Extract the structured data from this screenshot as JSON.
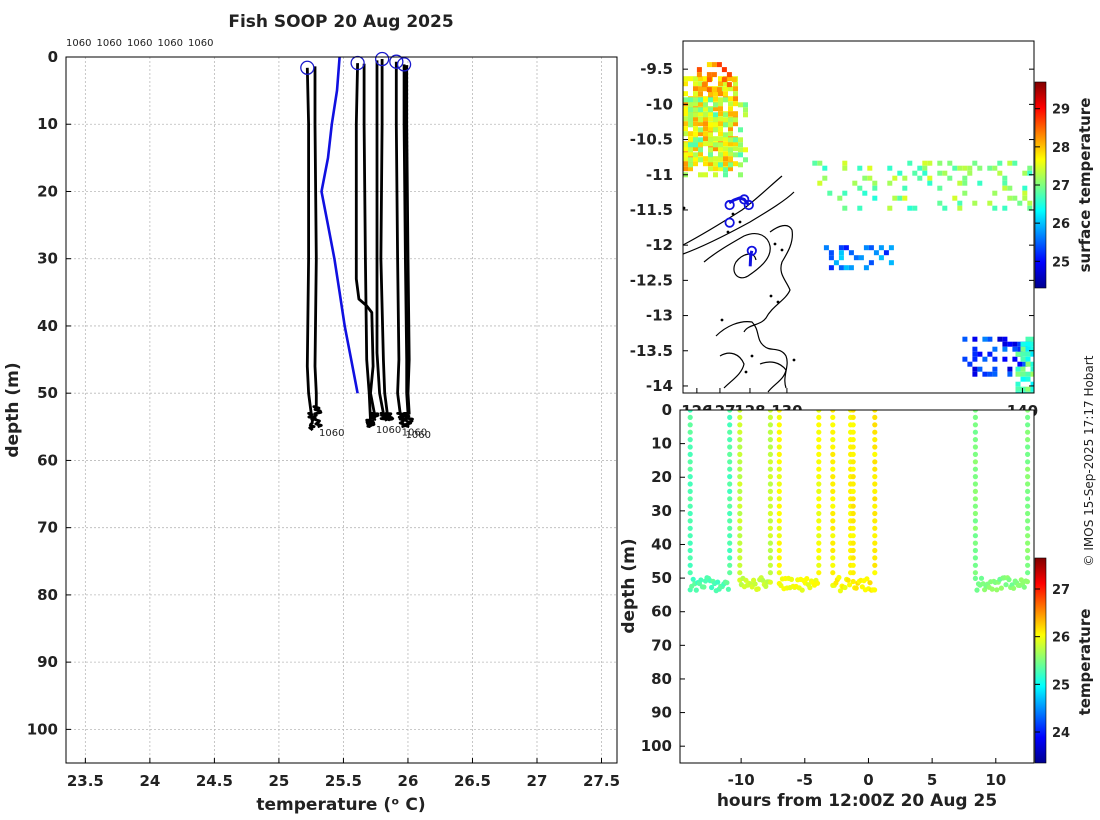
{
  "figure": {
    "title": "Fish SOOP 20 Aug 2025",
    "credit": "© IMOS 15-Sep-2025 17:17 Hobart",
    "colors": {
      "profile_line": "#000000",
      "mean_profile": "#1010e0",
      "profile_marker": "#1a1acc",
      "coastline": "#000000"
    }
  },
  "chart_data": [
    {
      "id": "profiles",
      "type": "line",
      "title": "Fish SOOP 20 Aug 2025",
      "xlabel": "temperature (ᵒ C)",
      "ylabel": "depth (m)",
      "xlim": [
        23.35,
        27.62
      ],
      "ylim": [
        105,
        0
      ],
      "xticks": [
        23.5,
        24,
        24.5,
        25,
        25.5,
        26,
        26.5,
        27,
        27.5
      ],
      "yticks": [
        0,
        10,
        20,
        30,
        40,
        50,
        60,
        70,
        80,
        90,
        100
      ],
      "grid": true,
      "top_labels": [
        "1060",
        "1060",
        "1060",
        "1060",
        "1060"
      ],
      "end_labels": [
        {
          "text": "1060",
          "x": 25.28,
          "y": 55.5
        },
        {
          "text": "1060",
          "x": 25.72,
          "y": 55.0
        },
        {
          "text": "1060",
          "x": 25.92,
          "y": 55.4
        },
        {
          "text": "1060",
          "x": 25.95,
          "y": 55.8
        }
      ],
      "markers": [
        {
          "x": 25.22,
          "y": 1.6
        },
        {
          "x": 25.61,
          "y": 0.9
        },
        {
          "x": 25.8,
          "y": 0.3
        },
        {
          "x": 25.91,
          "y": 0.7
        },
        {
          "x": 25.97,
          "y": 1.1
        }
      ],
      "series": [
        {
          "name": "profile 1",
          "color": "#000000",
          "points": [
            [
              25.22,
              1.6
            ],
            [
              25.23,
              10
            ],
            [
              25.23,
              30
            ],
            [
              25.22,
              46
            ],
            [
              25.23,
              50
            ],
            [
              25.25,
              53
            ],
            [
              25.26,
              55.5
            ]
          ]
        },
        {
          "name": "profile 2",
          "color": "#000000",
          "points": [
            [
              25.28,
              1.4
            ],
            [
              25.28,
              10
            ],
            [
              25.29,
              30
            ],
            [
              25.28,
              46
            ],
            [
              25.29,
              50
            ],
            [
              25.29,
              52
            ],
            [
              25.3,
              55
            ]
          ]
        },
        {
          "name": "profile 3",
          "color": "#000000",
          "points": [
            [
              25.61,
              0.9
            ],
            [
              25.6,
              10
            ],
            [
              25.6,
              33
            ],
            [
              25.62,
              36
            ],
            [
              25.68,
              37
            ],
            [
              25.72,
              38
            ],
            [
              25.73,
              46
            ],
            [
              25.71,
              50
            ],
            [
              25.74,
              53
            ],
            [
              25.74,
              54
            ]
          ]
        },
        {
          "name": "profile 4",
          "color": "#000000",
          "points": [
            [
              25.66,
              1.0
            ],
            [
              25.66,
              10
            ],
            [
              25.67,
              30
            ],
            [
              25.68,
              45
            ],
            [
              25.7,
              50
            ],
            [
              25.71,
              54
            ],
            [
              25.71,
              55
            ]
          ]
        },
        {
          "name": "profile 5",
          "color": "#000000",
          "points": [
            [
              25.76,
              0.5
            ],
            [
              25.76,
              10
            ],
            [
              25.76,
              30
            ],
            [
              25.76,
              44
            ],
            [
              25.78,
              50
            ],
            [
              25.81,
              53
            ],
            [
              25.82,
              54
            ]
          ]
        },
        {
          "name": "profile 6",
          "color": "#000000",
          "points": [
            [
              25.8,
              0.3
            ],
            [
              25.8,
              10
            ],
            [
              25.79,
              30
            ],
            [
              25.81,
              45
            ],
            [
              25.82,
              50
            ],
            [
              25.84,
              53
            ],
            [
              25.86,
              54
            ]
          ]
        },
        {
          "name": "profile 7",
          "color": "#000000",
          "points": [
            [
              25.91,
              0.7
            ],
            [
              25.91,
              10
            ],
            [
              25.92,
              30
            ],
            [
              25.93,
              45
            ],
            [
              25.92,
              50
            ],
            [
              25.94,
              53
            ],
            [
              25.95,
              55
            ]
          ]
        },
        {
          "name": "profile 8",
          "color": "#000000",
          "points": [
            [
              25.97,
              1.1
            ],
            [
              25.97,
              10
            ],
            [
              25.98,
              30
            ],
            [
              25.99,
              45
            ],
            [
              25.99,
              50
            ],
            [
              26.0,
              53
            ],
            [
              26.0,
              55
            ]
          ]
        },
        {
          "name": "profile 9",
          "color": "#000000",
          "points": [
            [
              25.99,
              1.2
            ],
            [
              25.99,
              10
            ],
            [
              26.0,
              30
            ],
            [
              26.01,
              45
            ],
            [
              26.0,
              50
            ],
            [
              26.01,
              53
            ],
            [
              26.01,
              55
            ]
          ]
        },
        {
          "name": "mean profile",
          "color": "#1010e0",
          "points": [
            [
              25.47,
              0
            ],
            [
              25.45,
              5
            ],
            [
              25.41,
              10
            ],
            [
              25.38,
              15
            ],
            [
              25.33,
              20
            ],
            [
              25.38,
              25
            ],
            [
              25.43,
              30
            ],
            [
              25.47,
              35
            ],
            [
              25.51,
              40
            ],
            [
              25.56,
              45
            ],
            [
              25.61,
              50
            ]
          ]
        }
      ]
    },
    {
      "id": "surface-map",
      "type": "heatmap",
      "colorbar_label": "surface temperature",
      "colorbar_ticks": [
        25,
        26,
        27,
        28,
        29
      ],
      "colorbar_range": [
        24.3,
        29.7
      ],
      "ylim": [
        -14.1,
        -9.1
      ],
      "xlim": [
        125.4,
        140.6
      ],
      "yticks": [
        -9.5,
        -10,
        -10.5,
        -11,
        -11.5,
        -12,
        -12.5,
        -13,
        -13.5,
        -14
      ],
      "yticklabels": [
        "-9.5",
        "-10",
        "-10.5",
        "-11",
        "-11.5",
        "-12",
        "-12.5",
        "-13",
        "-13.5",
        "-14"
      ],
      "xticks": [
        126,
        127,
        128,
        130,
        140
      ],
      "xticklabels": [
        "126",
        "127",
        "128",
        "130",
        "140"
      ],
      "regions": [
        {
          "value": 27.8,
          "lon": [
            125.4,
            127.7
          ],
          "lat": [
            -10.9,
            -9.6
          ],
          "density": 0.85
        },
        {
          "value": 27.2,
          "lon": [
            125.4,
            128.2
          ],
          "lat": [
            -11.0,
            -9.9
          ],
          "density": 0.35
        },
        {
          "value": 28.3,
          "lon": [
            126.0,
            127.6
          ],
          "lat": [
            -9.8,
            -9.4
          ],
          "density": 0.4
        },
        {
          "value": 27.0,
          "lon": [
            131.0,
            140.5
          ],
          "lat": [
            -11.5,
            -10.8
          ],
          "density": 0.18
        },
        {
          "value": 25.6,
          "lon": [
            131.5,
            134.5
          ],
          "lat": [
            -12.3,
            -12.0
          ],
          "density": 0.35
        },
        {
          "value": 25.2,
          "lon": [
            137.5,
            140.5
          ],
          "lat": [
            -13.8,
            -13.3
          ],
          "density": 0.35
        },
        {
          "value": 26.7,
          "lon": [
            139.8,
            140.5
          ],
          "lat": [
            -14.1,
            -13.3
          ],
          "density": 0.6
        }
      ],
      "track_points": [
        {
          "lon": 127.42,
          "lat": -11.43
        },
        {
          "lon": 127.42,
          "lat": -11.68
        },
        {
          "lon": 128.05,
          "lat": -11.35
        },
        {
          "lon": 128.25,
          "lat": -11.43
        },
        {
          "lon": 128.38,
          "lat": -12.08
        }
      ],
      "track_lines": [
        [
          [
            127.4,
            -11.4
          ],
          [
            127.6,
            -11.36
          ],
          [
            127.85,
            -11.33
          ],
          [
            128.05,
            -11.35
          ],
          [
            128.25,
            -11.43
          ]
        ],
        [
          [
            128.38,
            -12.08
          ],
          [
            128.33,
            -12.15
          ],
          [
            128.31,
            -12.3
          ]
        ]
      ]
    },
    {
      "id": "depth-time",
      "type": "scatter",
      "xlabel": "hours from 12:00Z 20 Aug 25",
      "ylabel": "depth (m)",
      "xlim": [
        -14.8,
        13.0
      ],
      "ylim": [
        105,
        0
      ],
      "xticks": [
        -10,
        -5,
        0,
        5,
        10
      ],
      "yticks": [
        0,
        10,
        20,
        30,
        40,
        50,
        60,
        70,
        80,
        90,
        100
      ],
      "colorbar_label": "temperature",
      "colorbar_ticks": [
        24,
        25,
        26,
        27
      ],
      "colorbar_range": [
        23.35,
        27.65
      ],
      "casts": [
        {
          "t_start": -14.0,
          "t_end": -10.9,
          "temp": 25.3
        },
        {
          "t_start": -10.1,
          "t_end": -7.7,
          "temp": 25.8
        },
        {
          "t_start": -7.0,
          "t_end": -3.9,
          "temp": 26.0
        },
        {
          "t_start": -2.8,
          "t_end": -1.4,
          "temp": 26.05
        },
        {
          "t_start": -1.2,
          "t_end": 0.5,
          "temp": 26.1
        },
        {
          "t_start": 8.4,
          "t_end": 12.5,
          "temp": 25.5
        }
      ]
    }
  ]
}
